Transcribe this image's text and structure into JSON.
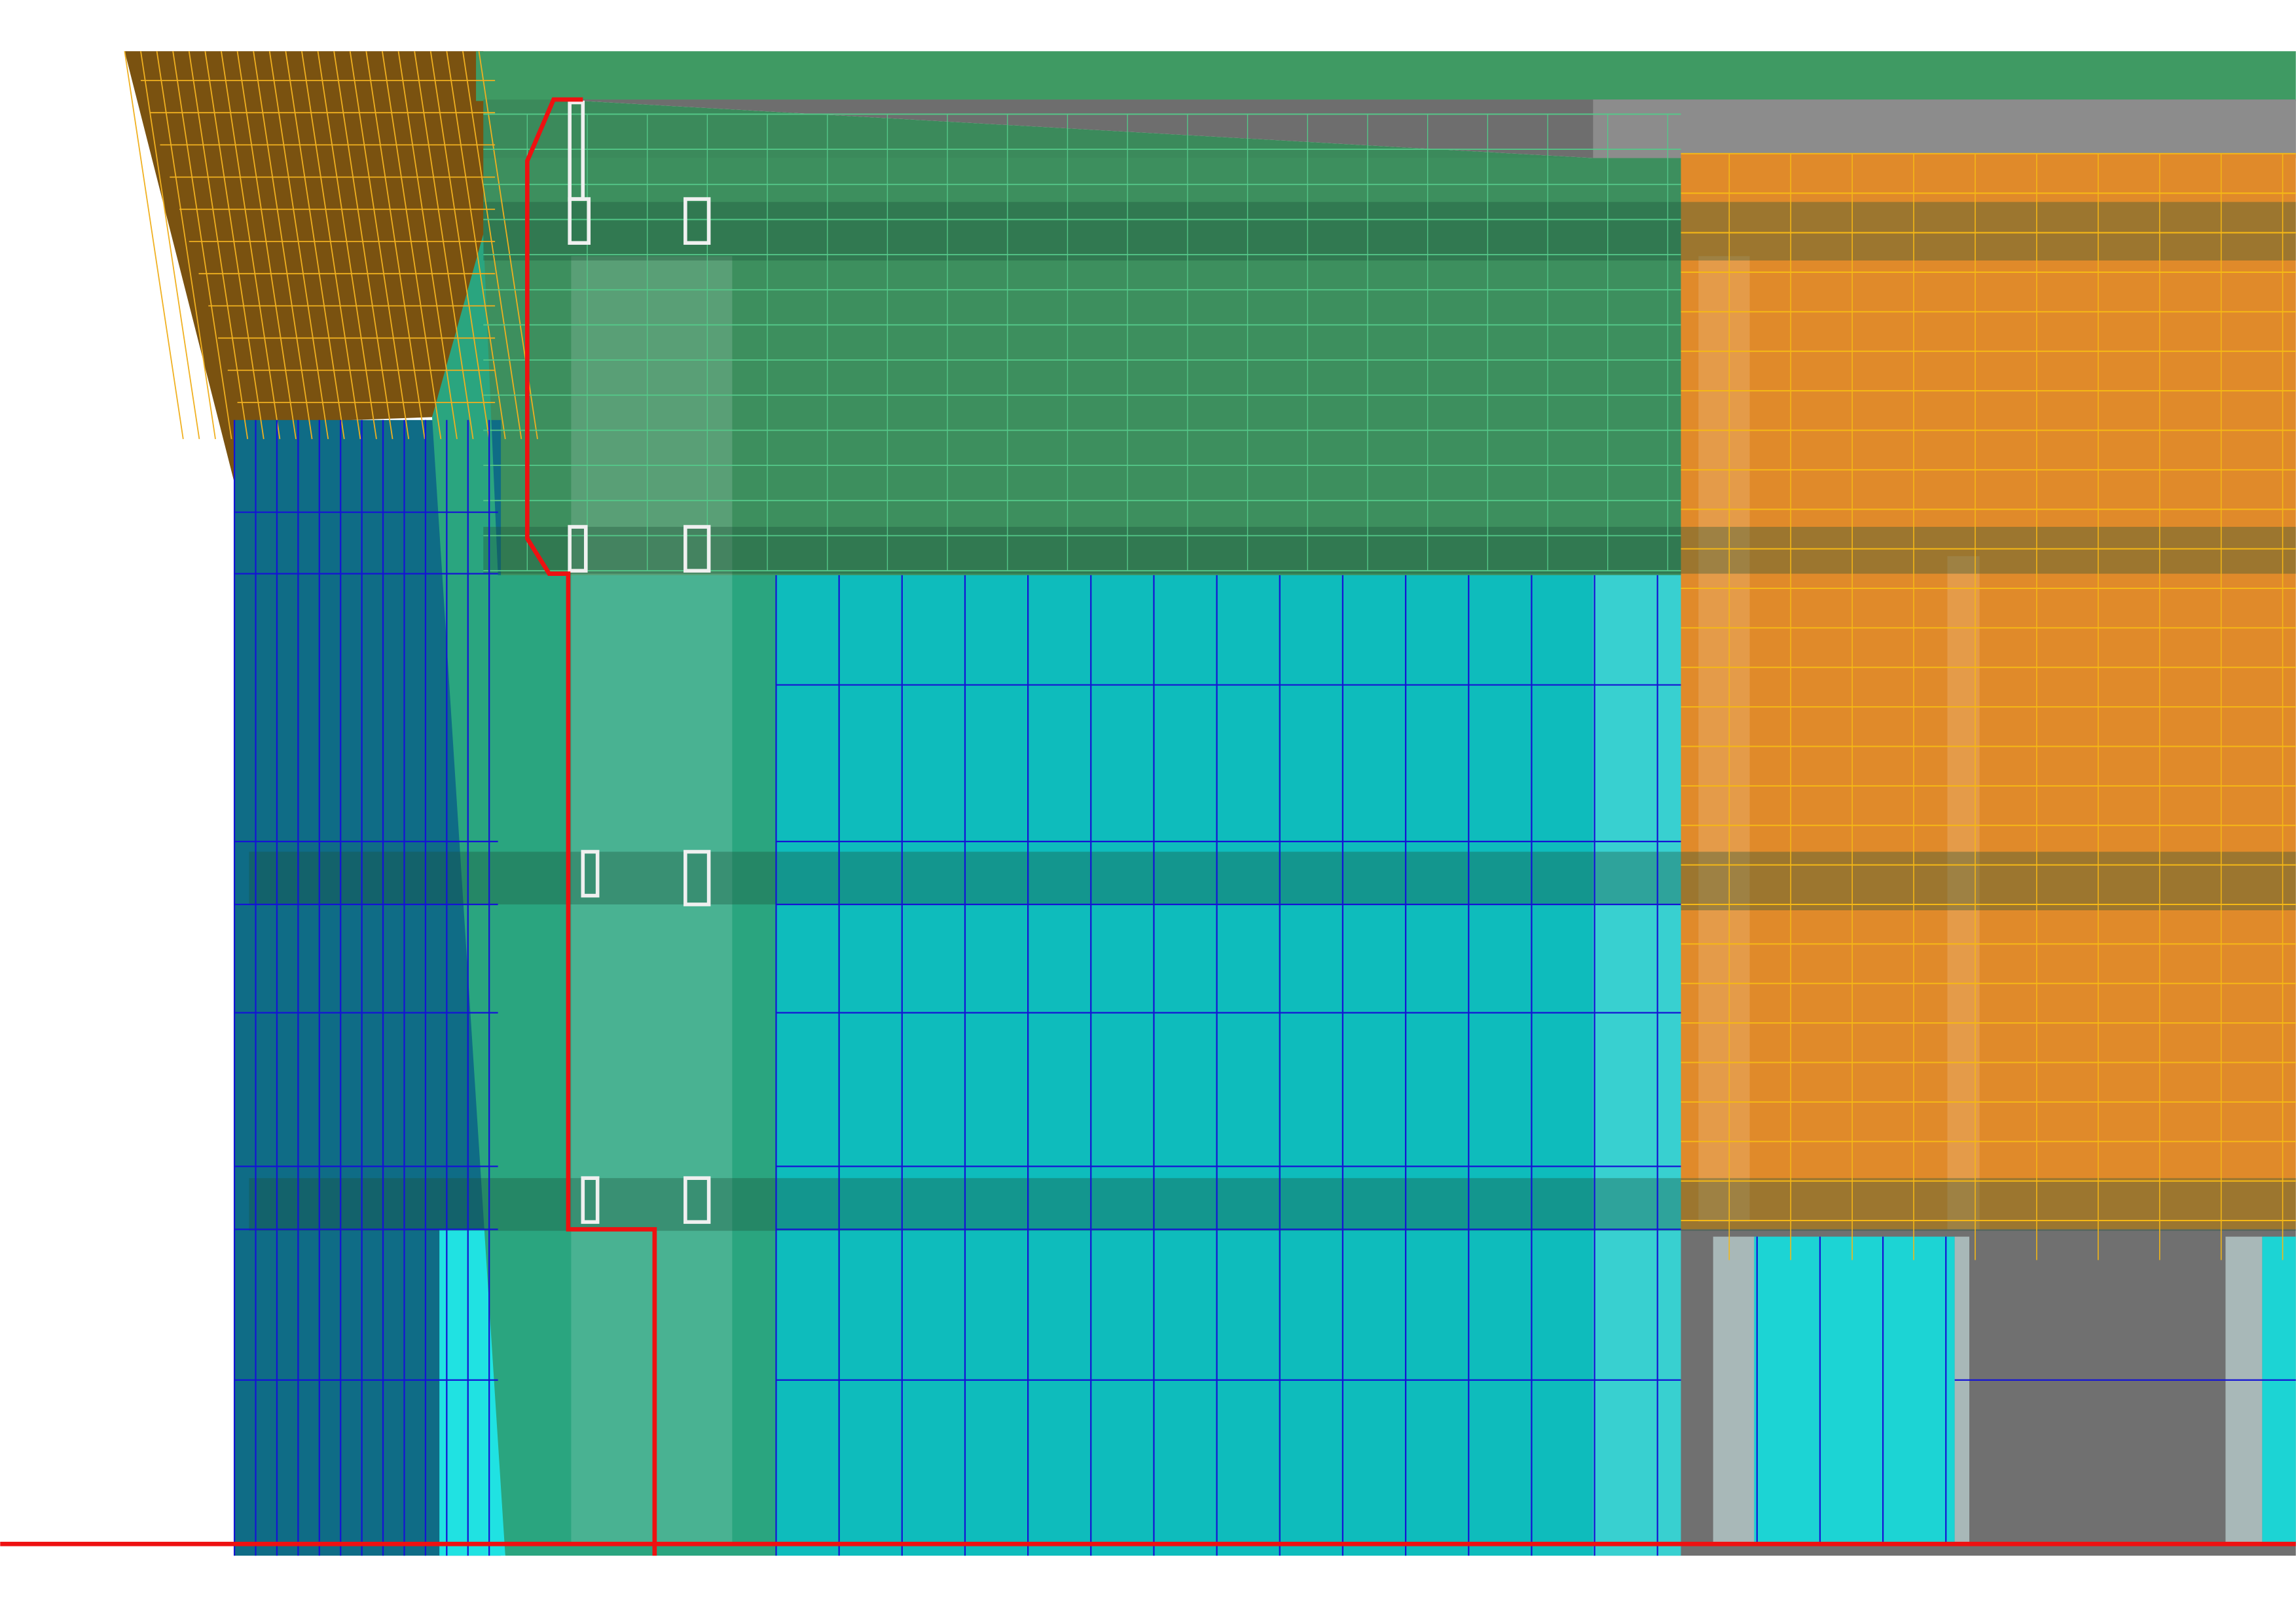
{
  "diagram": {
    "type": "building-facade-elevation",
    "colors": {
      "background": "#ffffff",
      "roof_cladding": "#7a5210",
      "roof_lines": "#f0b020",
      "top_band": "#3f9a63",
      "soffit_gray": "#6e6e6e",
      "soffit_light": "#8c8c8c",
      "green_facade": "#3d8f5e",
      "green_lines": "#55c98a",
      "dark_band": "#2f6b4c",
      "orange_facade": "#e08a2a",
      "orange_lines": "#f5b816",
      "cyan_glazing": "#12b9b0",
      "cyan_light": "#20e2e2",
      "mullion_blue": "#1414d4",
      "left_blue": "#0f6c86",
      "mid_green": "#2aa57f",
      "ground_gray": "#707070",
      "column_light": "#a8b8b8",
      "boundary_red": "#ee1111",
      "opening_white": "#f0f0f0"
    }
  }
}
